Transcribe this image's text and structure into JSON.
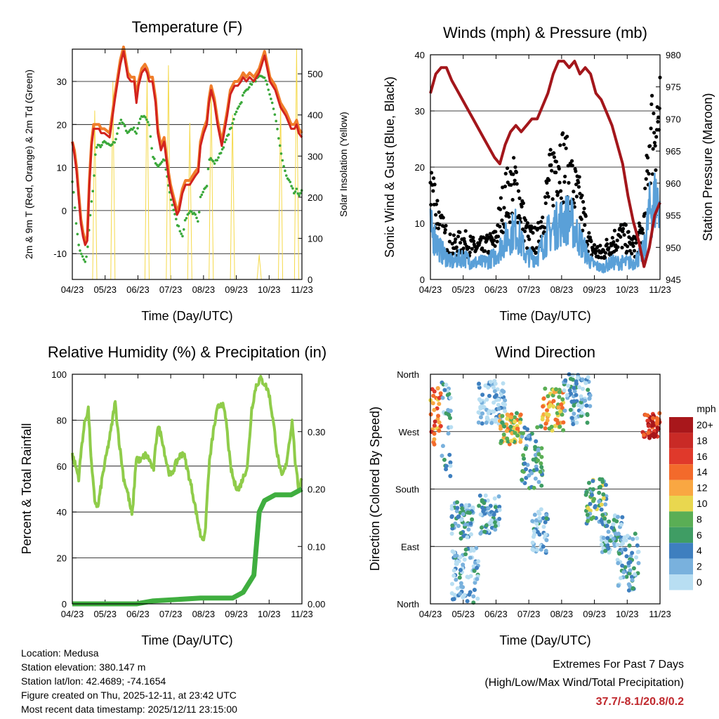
{
  "x_ticks": [
    "04/23",
    "05/23",
    "06/23",
    "07/23",
    "08/23",
    "09/23",
    "10/23",
    "11/23"
  ],
  "x_label": "Time (Day/UTC)",
  "colors": {
    "red": "#d2231e",
    "orange": "#f07d2a",
    "green": "#3aa83a",
    "yellow": "#f5d94a",
    "blue": "#5aa0d8",
    "maroon": "#a3161b",
    "lightgreen": "#8fcc4a",
    "precip": "#3fae3f"
  },
  "chart_data": [
    {
      "type": "line",
      "id": "temperature",
      "title": "Temperature (F)",
      "ylabel_left": "2m & 9m T (Red, Orange) & 2m Td (Green)",
      "ylabel_right": "Solar Insolation (Yellow)",
      "ylim": [
        -16,
        37.5
      ],
      "yticks": [
        -10,
        0,
        10,
        20,
        30
      ],
      "y2lim": [
        0,
        560
      ],
      "y2ticks": [
        0,
        100,
        200,
        300,
        400,
        500
      ],
      "x": [
        0,
        2,
        4,
        6,
        8,
        10,
        12,
        14,
        16,
        18,
        20,
        21,
        23,
        25,
        27,
        30,
        35,
        40,
        45,
        48,
        50,
        52,
        55,
        58,
        60,
        62,
        65,
        68,
        70,
        72,
        75,
        78,
        80,
        83,
        86,
        88,
        90,
        92,
        95,
        98,
        100,
        103,
        106,
        110,
        115,
        118,
        120,
        123,
        126,
        128,
        130,
        133,
        136,
        140,
        145,
        148,
        150,
        152,
        155,
        158,
        160,
        163,
        166,
        170,
        175,
        180,
        185,
        190,
        195,
        200,
        205,
        208,
        210,
        212,
        215
      ],
      "series": [
        {
          "name": "2m T",
          "values": [
            16,
            13,
            9,
            3,
            -3,
            -6,
            -8,
            -7,
            6,
            15,
            19,
            19,
            19,
            19,
            18,
            18,
            17,
            26,
            34,
            37,
            34,
            31,
            30,
            30,
            25,
            29,
            32,
            33,
            32,
            30,
            30,
            25,
            18,
            14,
            16,
            12,
            8,
            5,
            2,
            -1,
            0,
            4,
            6,
            6,
            8,
            9,
            15,
            18,
            20,
            25,
            28,
            25,
            20,
            15,
            22,
            27,
            28,
            29,
            29,
            30,
            31,
            30,
            31,
            30,
            32,
            36,
            30,
            28,
            24,
            22,
            19,
            19,
            20,
            18,
            17
          ]
        },
        {
          "name": "9m T",
          "values": [
            16,
            14,
            10,
            4,
            -2,
            -5,
            -7,
            -6,
            7,
            16,
            20,
            20,
            20,
            20,
            19,
            19,
            18,
            27,
            35,
            38,
            35,
            32,
            31,
            31,
            26,
            30,
            33,
            34,
            33,
            31,
            31,
            26,
            19,
            15,
            17,
            13,
            9,
            6,
            3,
            0,
            1,
            5,
            7,
            7,
            9,
            10,
            16,
            19,
            21,
            26,
            29,
            26,
            21,
            16,
            23,
            28,
            29,
            30,
            30,
            31,
            32,
            31,
            32,
            31,
            33,
            37,
            31,
            29,
            25,
            23,
            20,
            20,
            21,
            19,
            18
          ]
        },
        {
          "name": "2m Td",
          "values": [
            7,
            2,
            -4,
            -8,
            -10,
            -11,
            -12,
            -10,
            -3,
            2,
            6,
            12,
            15,
            15,
            15,
            16,
            15,
            16,
            21,
            20,
            19,
            18,
            19,
            19,
            18,
            20,
            22,
            22,
            21,
            20,
            13,
            11,
            10,
            11,
            12,
            9,
            6,
            3,
            0,
            -3,
            -4,
            -6,
            -2,
            0,
            -1,
            -3,
            3,
            5,
            6,
            12,
            12,
            11,
            12,
            14,
            17,
            19,
            20,
            22,
            24,
            25,
            27,
            28,
            29,
            30,
            31,
            31,
            27,
            22,
            14,
            8,
            6,
            4,
            5,
            3,
            5
          ]
        }
      ],
      "insolation": [
        {
          "x": 21,
          "y": 410
        },
        {
          "x": 38,
          "y": 480
        },
        {
          "x": 70,
          "y": 500
        },
        {
          "x": 90,
          "y": 520
        },
        {
          "x": 110,
          "y": 380
        },
        {
          "x": 130,
          "y": 470
        },
        {
          "x": 150,
          "y": 400
        },
        {
          "x": 175,
          "y": 60
        },
        {
          "x": 195,
          "y": 430
        },
        {
          "x": 210,
          "y": 560
        }
      ]
    },
    {
      "type": "scatter",
      "id": "winds",
      "title": "Winds (mph) & Pressure (mb)",
      "ylabel_left": "Sonic Wind & Gust (Blue, Black)",
      "ylabel_right": "Station Pressure (Maroon)",
      "ylim": [
        0,
        40
      ],
      "yticks": [
        0,
        10,
        20,
        30,
        40
      ],
      "y2lim": [
        945,
        980
      ],
      "y2ticks": [
        945,
        950,
        955,
        960,
        965,
        970,
        975,
        980
      ],
      "pressure": {
        "x": [
          0,
          5,
          10,
          15,
          20,
          30,
          40,
          50,
          60,
          65,
          70,
          75,
          80,
          85,
          90,
          95,
          100,
          110,
          115,
          120,
          125,
          130,
          135,
          140,
          145,
          150,
          155,
          160,
          165,
          170,
          175,
          180,
          185,
          190,
          195,
          200,
          205,
          210,
          215
        ],
        "values": [
          974,
          977,
          978,
          978,
          976,
          973,
          970,
          967,
          964,
          963,
          966,
          968,
          969,
          968,
          969,
          970,
          970,
          974,
          977,
          979,
          979,
          978,
          979,
          977,
          978,
          977,
          974,
          973,
          971,
          969,
          966,
          963,
          958,
          954,
          951,
          947,
          950,
          955,
          957
        ]
      },
      "wind_mean": {
        "x": [
          0,
          10,
          20,
          30,
          40,
          50,
          60,
          70,
          80,
          90,
          100,
          110,
          120,
          130,
          140,
          150,
          160,
          170,
          180,
          190,
          200,
          205,
          210,
          215
        ],
        "values": [
          9,
          5,
          3,
          4,
          3,
          3,
          4,
          7,
          9,
          4,
          4,
          8,
          10,
          11,
          7,
          3,
          2,
          3,
          3,
          3,
          5,
          12,
          14,
          14
        ]
      },
      "gust_mean": {
        "x": [
          0,
          10,
          20,
          30,
          40,
          50,
          60,
          70,
          80,
          90,
          100,
          110,
          120,
          130,
          140,
          150,
          160,
          170,
          180,
          190,
          200,
          205,
          210,
          215
        ],
        "values": [
          16,
          8,
          5,
          6,
          5,
          5,
          6,
          13,
          15,
          7,
          6,
          14,
          20,
          16,
          12,
          5,
          4,
          6,
          7,
          5,
          8,
          22,
          25,
          25
        ]
      }
    },
    {
      "type": "line",
      "id": "humidity",
      "title": "Relative Humidity (%) & Precipitation (in)",
      "ylabel_left": "Percent & Total Rainfall",
      "ylim": [
        0,
        100
      ],
      "yticks": [
        0,
        20,
        40,
        60,
        80,
        100
      ],
      "y2lim": [
        0,
        0.4
      ],
      "y2ticks": [
        "0.00",
        "0.10",
        "0.20",
        "0.30"
      ],
      "rh": {
        "x": [
          0,
          3,
          6,
          9,
          12,
          15,
          18,
          21,
          24,
          28,
          32,
          36,
          40,
          44,
          48,
          52,
          56,
          60,
          64,
          68,
          72,
          76,
          80,
          84,
          88,
          92,
          96,
          100,
          104,
          108,
          112,
          116,
          120,
          124,
          128,
          132,
          136,
          140,
          144,
          148,
          152,
          156,
          160,
          164,
          168,
          172,
          176,
          180,
          184,
          188,
          192,
          196,
          200,
          203,
          206,
          209,
          212,
          215
        ],
        "values": [
          65,
          60,
          55,
          70,
          80,
          85,
          60,
          45,
          42,
          55,
          65,
          75,
          88,
          70,
          55,
          48,
          38,
          64,
          62,
          65,
          63,
          58,
          78,
          72,
          62,
          55,
          60,
          64,
          66,
          58,
          50,
          40,
          30,
          28,
          60,
          75,
          85,
          88,
          80,
          60,
          52,
          50,
          55,
          60,
          85,
          95,
          98,
          96,
          92,
          80,
          65,
          55,
          60,
          70,
          80,
          60,
          50,
          55
        ]
      },
      "precip": {
        "x": [
          0,
          60,
          75,
          120,
          125,
          130,
          140,
          150,
          160,
          170,
          175,
          180,
          185,
          190,
          195,
          200,
          205,
          210,
          215
        ],
        "values": [
          0,
          0,
          0.005,
          0.01,
          0.01,
          0.01,
          0.01,
          0.01,
          0.02,
          0.05,
          0.16,
          0.18,
          0.185,
          0.19,
          0.19,
          0.19,
          0.19,
          0.195,
          0.2
        ]
      }
    },
    {
      "type": "scatter",
      "id": "direction",
      "title": "Wind Direction",
      "ylabel": "Direction (Colored By Speed)",
      "ylim": [
        0,
        360
      ],
      "yticks": [
        "North",
        "East",
        "South",
        "West",
        "North"
      ],
      "legend_title": "mph",
      "legend_labels": [
        "20+",
        "18",
        "16",
        "14",
        "12",
        "10",
        "8",
        "6",
        "4",
        "2",
        "0"
      ],
      "legend_colors": [
        "#a8171b",
        "#c92a26",
        "#e0392b",
        "#f36a2b",
        "#f9a742",
        "#e9d74f",
        "#5aae55",
        "#3f9d64",
        "#3e7fbf",
        "#79b1dd",
        "#b8def2"
      ],
      "clusters": [
        {
          "x0": 0,
          "x1": 10,
          "y0": 250,
          "y1": 340,
          "spd": 14
        },
        {
          "x0": 10,
          "x1": 20,
          "y0": 200,
          "y1": 350,
          "spd": 3
        },
        {
          "x0": 20,
          "x1": 40,
          "y0": 100,
          "y1": 160,
          "spd": 3
        },
        {
          "x0": 20,
          "x1": 45,
          "y0": 0,
          "y1": 90,
          "spd": 2
        },
        {
          "x0": 45,
          "x1": 65,
          "y0": 110,
          "y1": 170,
          "spd": 3
        },
        {
          "x0": 45,
          "x1": 70,
          "y0": 280,
          "y1": 350,
          "spd": 1
        },
        {
          "x0": 65,
          "x1": 85,
          "y0": 250,
          "y1": 300,
          "spd": 10
        },
        {
          "x0": 85,
          "x1": 105,
          "y0": 180,
          "y1": 280,
          "spd": 5
        },
        {
          "x0": 95,
          "x1": 110,
          "y0": 80,
          "y1": 150,
          "spd": 2
        },
        {
          "x0": 105,
          "x1": 125,
          "y0": 270,
          "y1": 340,
          "spd": 11
        },
        {
          "x0": 125,
          "x1": 150,
          "y0": 280,
          "y1": 360,
          "spd": 2
        },
        {
          "x0": 145,
          "x1": 165,
          "y0": 120,
          "y1": 200,
          "spd": 6
        },
        {
          "x0": 160,
          "x1": 180,
          "y0": 80,
          "y1": 140,
          "spd": 3
        },
        {
          "x0": 175,
          "x1": 195,
          "y0": 20,
          "y1": 110,
          "spd": 3
        },
        {
          "x0": 198,
          "x1": 215,
          "y0": 260,
          "y1": 300,
          "spd": 17
        }
      ]
    }
  ],
  "info": {
    "location": "Location: Medusa",
    "elevation": "Station elevation: 380.147 m",
    "latlon": "Station lat/lon: 42.4689; -74.1654",
    "created": "Figure created on Thu, 2025-12-11, at 23:42 UTC",
    "recent": "Most recent data timestamp: 2025/12/11 23:15:00"
  },
  "extremes": {
    "title": "Extremes For Past 7 Days",
    "subtitle": "(High/Low/Max Wind/Total Precipitation)",
    "values": "37.7/-8.1/20.8/0.2"
  }
}
